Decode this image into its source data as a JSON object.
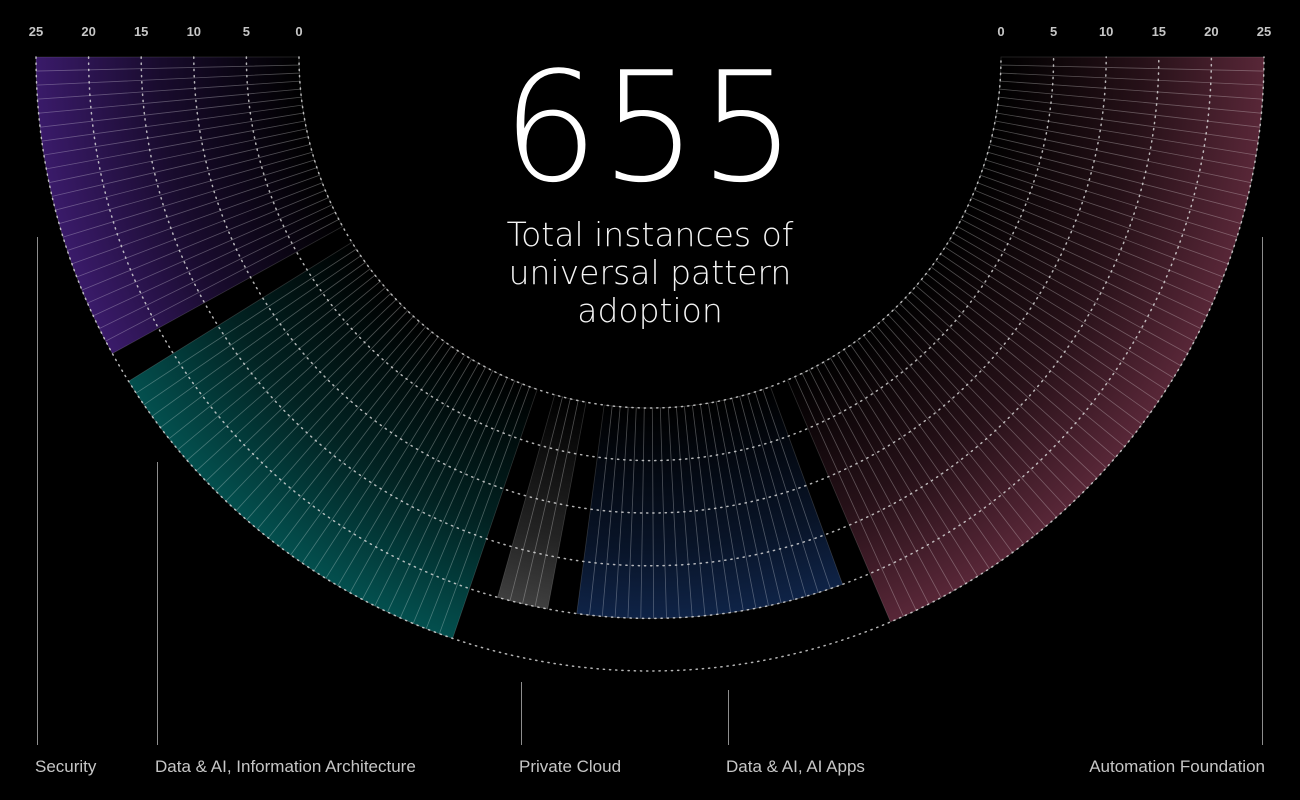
{
  "headline": {
    "value": "655",
    "caption": "Total instances of universal pattern adoption"
  },
  "chart_data": {
    "type": "radial-bar",
    "title": "",
    "left_axis_ticks": [
      "25",
      "20",
      "15",
      "10",
      "5",
      "0"
    ],
    "right_axis_ticks": [
      "0",
      "5",
      "10",
      "15",
      "20",
      "25"
    ],
    "radial_range": [
      0,
      25
    ],
    "grid": true,
    "categories": [
      {
        "name": "Security",
        "color": "#8a3ffc",
        "bar_count": 22,
        "typical_value": 25
      },
      {
        "name": "Data & AI, Information Architecture",
        "color": "#08bdba",
        "bar_count": 30,
        "typical_value": 25
      },
      {
        "name": "Private Cloud",
        "color": "#c6c6c6",
        "bar_count": 4,
        "typical_value": 20
      },
      {
        "name": "Data & AI, AI Apps",
        "color": "#2f6fdf",
        "bar_count": 21,
        "typical_value": 20
      },
      {
        "name": "Automation Foundation",
        "color": "#d25c84",
        "bar_count": 51,
        "typical_value": 25
      }
    ]
  }
}
